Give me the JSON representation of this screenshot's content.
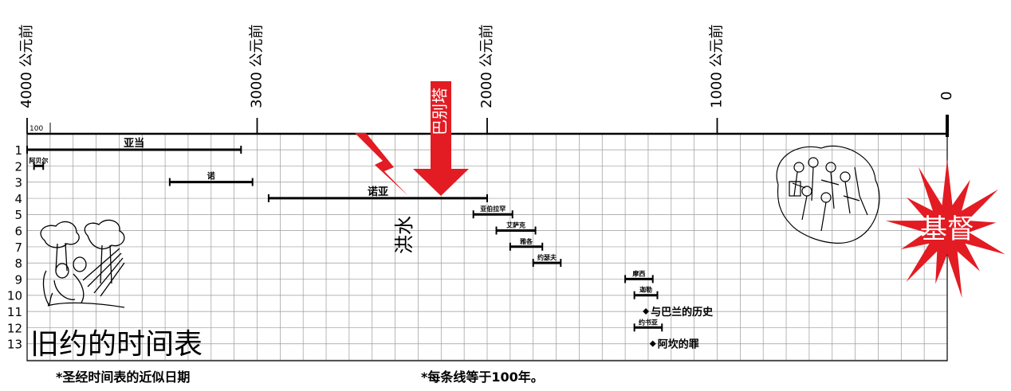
{
  "title": "旧约的时间表",
  "era_labels": [
    "4000 公元前",
    "3000 公元前",
    "2000 公元前",
    "1000 公元前",
    "0"
  ],
  "scale_label": "100",
  "row_numbers": [
    "1",
    "2",
    "3",
    "4",
    "5",
    "6",
    "7",
    "8",
    "9",
    "10",
    "11",
    "12",
    "13"
  ],
  "lifespans": [
    {
      "name": "亚当",
      "row": 1,
      "start": -4000,
      "end": -3070
    },
    {
      "name": "阿贝尔",
      "row": 2,
      "start": -3970,
      "end": -3930
    },
    {
      "name": "诺",
      "row": 3,
      "start": -3380,
      "end": -3020
    },
    {
      "name": "诺亚",
      "row": 4,
      "start": -2950,
      "end": -2000
    },
    {
      "name": "亚伯拉罕",
      "row": 5,
      "start": -2060,
      "end": -1890
    },
    {
      "name": "艾萨克",
      "row": 6,
      "start": -1960,
      "end": -1790
    },
    {
      "name": "雅各",
      "row": 7,
      "start": -1900,
      "end": -1760
    },
    {
      "name": "约瑟夫",
      "row": 8,
      "start": -1800,
      "end": -1680
    },
    {
      "name": "摩西",
      "row": 9,
      "start": -1400,
      "end": -1280
    },
    {
      "name": "迦勒",
      "row": 10,
      "start": -1360,
      "end": -1260
    },
    {
      "name": "约书亚",
      "row": 12,
      "start": -1360,
      "end": -1240
    }
  ],
  "events": [
    {
      "label": "与巴兰的历史",
      "row": 11,
      "year": -1310
    },
    {
      "label": "阿坎的罪",
      "row": 13,
      "year": -1280
    }
  ],
  "flood_label": "洪水",
  "babel_label": "巴别塔",
  "christ_label": "基督",
  "footnote_left": "*圣经时间表的近似日期",
  "footnote_center": "*每条线等于100年。",
  "colors": {
    "red": "#e31b23",
    "grid": "#9a9a9a",
    "ink": "#000000"
  }
}
